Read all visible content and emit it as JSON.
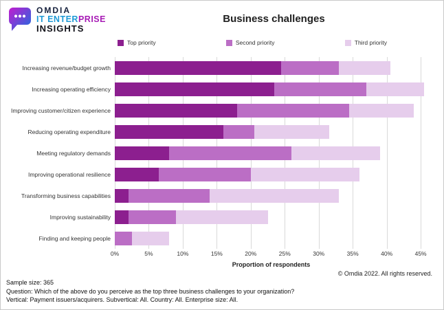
{
  "logo": {
    "brand": "OMDIA",
    "product_primary": "IT ENTER",
    "product_accent": "PRISE",
    "product_line2": "INSIGHTS",
    "colors": {
      "brand": "#15203c",
      "blue": "#1f9ad6",
      "magenta": "#a71bb5",
      "icon_gradient_start": "#c21ccf",
      "icon_gradient_end": "#1b6ee0"
    }
  },
  "chart_data": {
    "type": "bar",
    "stacked": true,
    "orientation": "horizontal",
    "title": "Business challenges",
    "xlabel": "Proportion of respondents",
    "xlim": [
      0,
      45
    ],
    "plot_max": 46,
    "xticks": [
      0,
      5,
      10,
      15,
      20,
      25,
      30,
      35,
      40,
      45
    ],
    "grid": "vertical",
    "legend_position": "top",
    "categories": [
      "Increasing revenue/budget growth",
      "Increasing operating efficiency",
      "Improving customer/citizen experience",
      "Reducing operating expenditure",
      "Meeting regulatory demands",
      "Improving operational resilience",
      "Transforming business capabilities",
      "Improving sustainability",
      "Finding and keeping people"
    ],
    "series": [
      {
        "name": "Top priority",
        "color": "#8c1f8f",
        "values": [
          24.5,
          23.5,
          18,
          16,
          8,
          6.5,
          2,
          2,
          0
        ]
      },
      {
        "name": "Second priority",
        "color": "#bb6ec5",
        "values": [
          8.5,
          13.5,
          16.5,
          4.5,
          18,
          13.5,
          12,
          7,
          2.5
        ]
      },
      {
        "name": "Third priority",
        "color": "#e6cdec",
        "values": [
          7.5,
          8.5,
          9.5,
          11,
          13,
          16,
          19,
          13.5,
          5.5
        ]
      }
    ]
  },
  "copyright": "© Omdia 2022. All rights reserved.",
  "footer": {
    "lines": [
      "Sample size: 365",
      "Question: Which of the above do you perceive as the top three business challenges to your organization?",
      "Vertical: Payment issuers/acquirers. Subvertical: All. Country: All. Enterprise size: All."
    ]
  }
}
